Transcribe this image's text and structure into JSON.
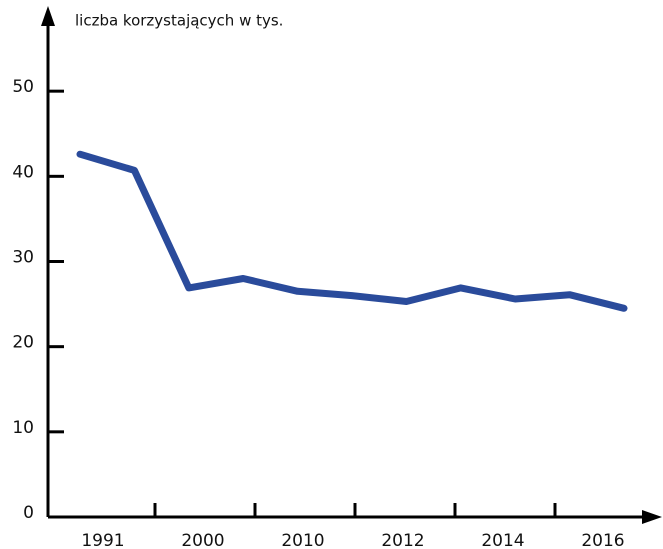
{
  "chart_data": {
    "type": "line",
    "y_label": "liczba korzystających w tys.",
    "categories": [
      "1991",
      null,
      "2000",
      null,
      "2010",
      null,
      "2012",
      null,
      "2014",
      null,
      "2016"
    ],
    "series": [
      {
        "name": null,
        "color": "#2a4b9b",
        "values": [
          42.6,
          40.7,
          26.9,
          28.0,
          26.5,
          26.0,
          25.3,
          26.9,
          25.6,
          26.1,
          24.5
        ]
      }
    ],
    "ylim": [
      0,
      60
    ],
    "yticks": [
      0,
      10,
      20,
      30,
      40,
      50
    ]
  }
}
